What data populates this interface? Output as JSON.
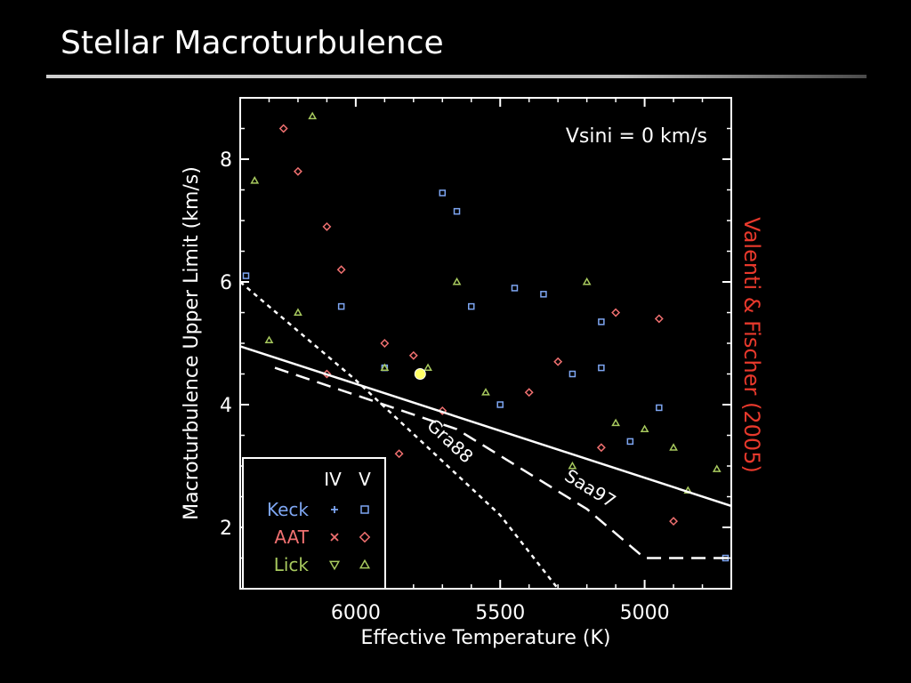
{
  "slide": {
    "title": "Stellar Macroturbulence",
    "credit": "Valenti & Fischer (2005)"
  },
  "colors": {
    "keck": "#7ea6f2",
    "aat": "#f07070",
    "lick": "#a7c95e",
    "credit": "#e8392c",
    "sun": "#ffff66"
  },
  "chart_data": {
    "type": "scatter",
    "xlabel": "Effective Temperature (K)",
    "ylabel": "Macroturbulence Upper Limit (km/s)",
    "xlim": [
      6400,
      4700
    ],
    "ylim": [
      1.0,
      9.0
    ],
    "x_reversed": true,
    "x_ticks": [
      6000,
      5500,
      5000
    ],
    "y_ticks": [
      2,
      4,
      6,
      8
    ],
    "annotation": "Vsini = 0 km/s",
    "legend": {
      "placement": "bottom-left",
      "headers": [
        "IV",
        "V"
      ],
      "entries": [
        {
          "name": "Keck",
          "IV_marker": "+",
          "V_marker": "square"
        },
        {
          "name": "AAT",
          "IV_marker": "x",
          "V_marker": "diamond"
        },
        {
          "name": "Lick",
          "IV_marker": "triangle-down",
          "V_marker": "triangle-up"
        }
      ]
    },
    "reference_point": {
      "x": 5777,
      "y": 4.5
    },
    "relations": [
      {
        "name": "",
        "style": "solid",
        "x": [
          6400,
          4700
        ],
        "y": [
          4.95,
          2.35
        ]
      },
      {
        "name": "Saa97",
        "style": "long-dash",
        "x": [
          6280,
          5650,
          5200,
          5000,
          4700
        ],
        "y": [
          4.6,
          3.6,
          2.3,
          1.5,
          1.5
        ]
      },
      {
        "name": "Gra88",
        "style": "short-dash",
        "x": [
          6400,
          6000,
          5500,
          5300
        ],
        "y": [
          6.0,
          4.4,
          2.2,
          1.0
        ]
      }
    ],
    "series": [
      {
        "name": "Keck",
        "points": [
          [
            5700,
            7.45
          ],
          [
            5350,
            5.8
          ],
          [
            5650,
            7.15
          ],
          [
            5450,
            5.9
          ],
          [
            6050,
            5.6
          ],
          [
            6380,
            6.1
          ],
          [
            5150,
            5.35
          ],
          [
            4950,
            3.95
          ],
          [
            5150,
            4.6
          ],
          [
            5900,
            4.6
          ],
          [
            5500,
            4.0
          ],
          [
            4720,
            1.5
          ],
          [
            5050,
            3.4
          ],
          [
            5600,
            5.6
          ],
          [
            5250,
            4.5
          ]
        ]
      },
      {
        "name": "AAT",
        "points": [
          [
            6250,
            8.5
          ],
          [
            6200,
            7.8
          ],
          [
            6100,
            6.9
          ],
          [
            6050,
            6.2
          ],
          [
            5900,
            5.0
          ],
          [
            5800,
            4.8
          ],
          [
            5400,
            4.2
          ],
          [
            5100,
            5.5
          ],
          [
            4950,
            5.4
          ],
          [
            4900,
            2.1
          ],
          [
            5150,
            3.3
          ],
          [
            5700,
            3.9
          ],
          [
            5850,
            3.2
          ],
          [
            6100,
            4.5
          ],
          [
            5300,
            4.7
          ]
        ]
      },
      {
        "name": "Lick",
        "points": [
          [
            6350,
            7.65
          ],
          [
            6300,
            5.05
          ],
          [
            5200,
            6.0
          ],
          [
            4850,
            2.6
          ],
          [
            5550,
            4.2
          ],
          [
            6150,
            8.7
          ],
          [
            5900,
            4.6
          ],
          [
            5000,
            3.6
          ],
          [
            5250,
            3.0
          ],
          [
            5750,
            4.6
          ],
          [
            4750,
            2.95
          ],
          [
            5650,
            6.0
          ],
          [
            5100,
            3.7
          ],
          [
            6200,
            5.5
          ],
          [
            4900,
            3.3
          ]
        ]
      }
    ]
  }
}
